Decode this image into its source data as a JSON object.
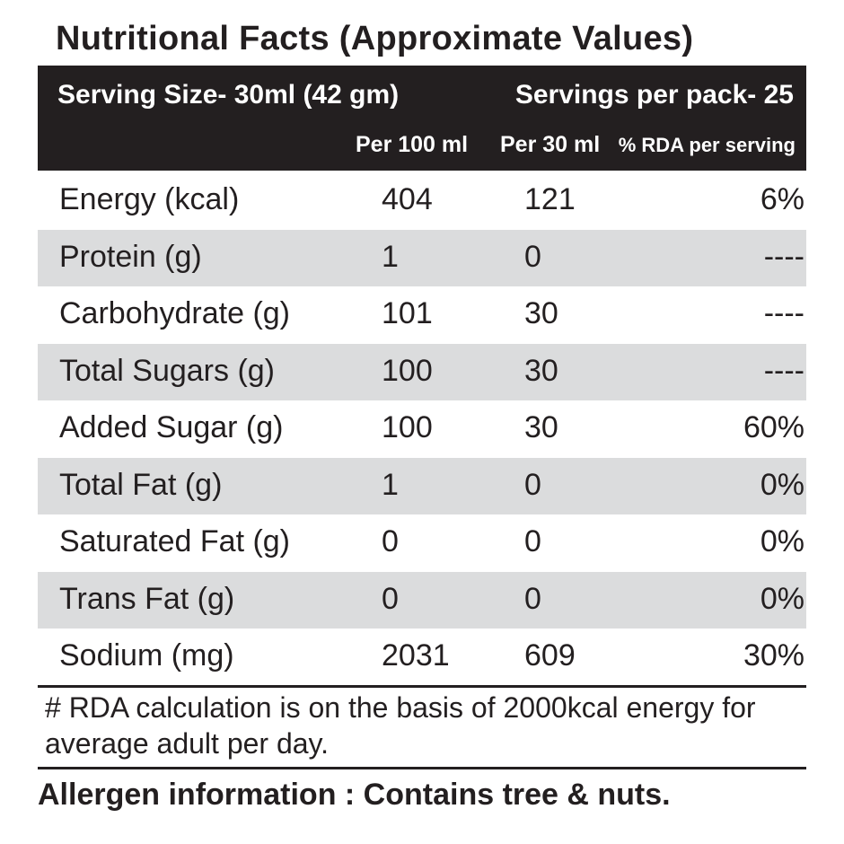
{
  "title": "Nutritional Facts (Approximate Values)",
  "header": {
    "serving_size": "Serving Size-  30ml (42 gm)",
    "servings_per_pack": "Servings per pack- 25",
    "columns": {
      "per_100": "Per 100 ml",
      "per_30": "Per 30 ml",
      "rda": "% RDA per serving"
    }
  },
  "rows": [
    {
      "name": "Energy (kcal)",
      "per_100": "404",
      "per_30": "121",
      "rda": "6%"
    },
    {
      "name": "Protein (g)",
      "per_100": "1",
      "per_30": "0",
      "rda": "----"
    },
    {
      "name": "Carbohydrate (g)",
      "per_100": "101",
      "per_30": "30",
      "rda": "----"
    },
    {
      "name": "Total Sugars (g)",
      "per_100": "100",
      "per_30": "30",
      "rda": "----"
    },
    {
      "name": "Added Sugar (g)",
      "per_100": "100",
      "per_30": "30",
      "rda": "60%"
    },
    {
      "name": "Total Fat (g)",
      "per_100": "1",
      "per_30": "0",
      "rda": "0%"
    },
    {
      "name": "Saturated Fat (g)",
      "per_100": "0",
      "per_30": "0",
      "rda": "0%"
    },
    {
      "name": "Trans Fat (g)",
      "per_100": "0",
      "per_30": "0",
      "rda": "0%"
    },
    {
      "name": "Sodium (mg)",
      "per_100": "2031",
      "per_30": "609",
      "rda": "30%"
    }
  ],
  "note": "# RDA calculation is on the basis of 2000kcal energy for average adult per day.",
  "allergen": "Allergen information : Contains tree & nuts.",
  "colors": {
    "header_bg": "#231f20",
    "shade_row": "#dbdcdd",
    "text": "#231f20"
  }
}
